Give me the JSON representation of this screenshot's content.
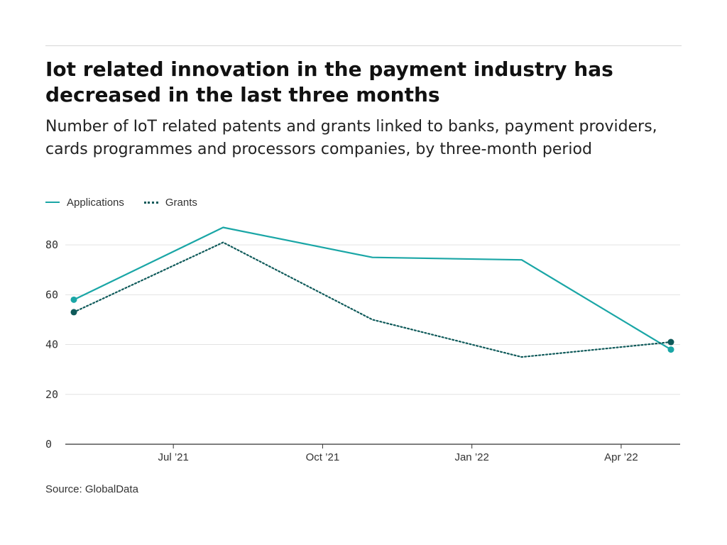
{
  "header": {
    "title": "Iot related innovation in the payment industry has decreased in the last three months",
    "subtitle": "Number of IoT related patents and grants linked to banks, payment providers, cards programmes and processors companies, by three-month period"
  },
  "legend": {
    "applications_label": "Applications",
    "grants_label": "Grants"
  },
  "footer": {
    "source": "Source: GlobalData"
  },
  "colors": {
    "applications": "#1aa6a6",
    "grants": "#0f5a5a",
    "grid": "#e3e3e3",
    "axis": "#333333"
  },
  "chart_data": {
    "type": "line",
    "x": [
      "2021-05",
      "2021-08",
      "2021-11",
      "2022-02",
      "2022-05"
    ],
    "x_tick_labels": [
      "Jul ’21",
      "Oct ’21",
      "Jan ’22",
      "Apr ’22"
    ],
    "x_tick_positions": [
      "2021-07",
      "2021-10",
      "2022-01",
      "2022-04"
    ],
    "series": [
      {
        "name": "Applications",
        "values": [
          58,
          87,
          75,
          74,
          38
        ],
        "style": "solid"
      },
      {
        "name": "Grants",
        "values": [
          53,
          81,
          50,
          35,
          41
        ],
        "style": "dotted"
      }
    ],
    "ylim": [
      0,
      90
    ],
    "y_ticks": [
      0,
      20,
      40,
      60,
      80
    ],
    "grid": true,
    "legend": "top-left",
    "xlabel": "",
    "ylabel": ""
  }
}
